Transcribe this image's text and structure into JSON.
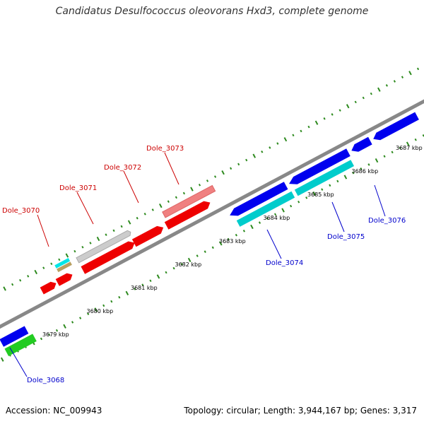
{
  "title": "Candidatus Desulfococcus oleovorans Hxd3, complete genome",
  "footer": {
    "accession": "Accession: NC_009943",
    "summary": "Topology: circular; Length: 3,944,167 bp; Genes: 3,317"
  },
  "colors": {
    "backbone": "#888888",
    "tick": "#2d8a1e",
    "forward_label": "#cc0000",
    "reverse_label": "#0000cc"
  },
  "tick_labels": [
    {
      "text": "3679 kbp",
      "kbp": 3679
    },
    {
      "text": "3680 kbp",
      "kbp": 3680
    },
    {
      "text": "3681 kbp",
      "kbp": 3681
    },
    {
      "text": "3682 kbp",
      "kbp": 3682
    },
    {
      "text": "3683 kbp",
      "kbp": 3683
    },
    {
      "text": "3684 kbp",
      "kbp": 3684
    },
    {
      "text": "3685 kbp",
      "kbp": 3685
    },
    {
      "text": "3686 kbp",
      "kbp": 3686
    },
    {
      "text": "3687 kbp",
      "kbp": 3687
    }
  ],
  "gene_labels": [
    {
      "text": "Dole_3070",
      "strand": "forward"
    },
    {
      "text": "Dole_3071",
      "strand": "forward"
    },
    {
      "text": "Dole_3072",
      "strand": "forward"
    },
    {
      "text": "Dole_3073",
      "strand": "forward"
    },
    {
      "text": "Dole_3068",
      "strand": "reverse"
    },
    {
      "text": "Dole_3074",
      "strand": "reverse"
    },
    {
      "text": "Dole_3075",
      "strand": "reverse"
    },
    {
      "text": "Dole_3076",
      "strand": "reverse"
    }
  ]
}
